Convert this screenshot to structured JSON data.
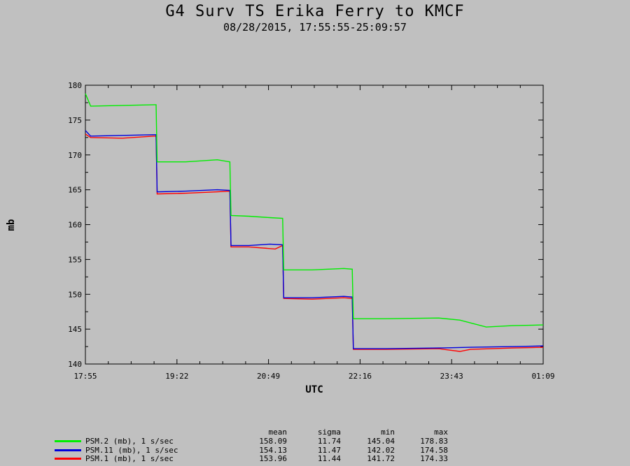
{
  "chart_data": {
    "type": "line",
    "title": "G4 Surv TS Erika Ferry to KMCF",
    "subtitle": "08/28/2015, 17:55:55-25:09:57",
    "xlabel": "UTC",
    "ylabel": "mb",
    "ylim": [
      140,
      180
    ],
    "yticks": [
      "140",
      "145",
      "150",
      "155",
      "160",
      "165",
      "170",
      "175",
      "180"
    ],
    "xlim": [
      "17:55",
      "01:09"
    ],
    "xtick_labels": [
      "17:55",
      "19:22",
      "20:49",
      "22:16",
      "23:43",
      "01:09"
    ],
    "grid": false,
    "series": [
      {
        "name": "PSM.2 (mb), 1 s/sec",
        "color": "#00ee00",
        "x": [
          "17:55",
          "18:00",
          "18:30",
          "19:00",
          "19:02",
          "19:03",
          "19:30",
          "20:00",
          "20:12",
          "20:13",
          "20:30",
          "20:50",
          "21:02",
          "21:03",
          "21:30",
          "22:00",
          "22:08",
          "22:09",
          "22:40",
          "23:30",
          "23:50",
          "00:15",
          "00:40",
          "01:09"
        ],
        "y": [
          178.8,
          177.0,
          177.1,
          177.2,
          177.2,
          169.0,
          169.0,
          169.3,
          169.0,
          161.3,
          161.2,
          161.0,
          160.9,
          153.5,
          153.5,
          153.7,
          153.6,
          146.5,
          146.5,
          146.6,
          146.3,
          145.3,
          145.5,
          145.6
        ]
      },
      {
        "name": "PSM.11 (mb), 1 s/sec",
        "color": "#0000dd",
        "x": [
          "17:55",
          "18:00",
          "18:30",
          "19:00",
          "19:02",
          "19:03",
          "19:30",
          "20:00",
          "20:12",
          "20:13",
          "20:30",
          "20:50",
          "21:02",
          "21:03",
          "21:30",
          "22:00",
          "22:08",
          "22:09",
          "22:40",
          "23:30",
          "00:00",
          "00:40",
          "01:09"
        ],
        "y": [
          173.5,
          172.7,
          172.8,
          172.9,
          172.9,
          164.7,
          164.8,
          165.0,
          164.9,
          157.0,
          157.0,
          157.2,
          157.1,
          149.5,
          149.5,
          149.7,
          149.6,
          142.2,
          142.2,
          142.3,
          142.4,
          142.5,
          142.6
        ]
      },
      {
        "name": "PSM.1 (mb), 1 s/sec",
        "color": "#ff0000",
        "x": [
          "17:55",
          "18:00",
          "18:30",
          "19:00",
          "19:02",
          "19:03",
          "19:30",
          "20:00",
          "20:12",
          "20:13",
          "20:30",
          "20:55",
          "21:02",
          "21:03",
          "21:30",
          "22:00",
          "22:08",
          "22:09",
          "22:40",
          "23:30",
          "23:50",
          "00:00",
          "00:40",
          "01:09"
        ],
        "y": [
          173.0,
          172.5,
          172.4,
          172.7,
          172.7,
          164.4,
          164.5,
          164.7,
          164.8,
          156.8,
          156.8,
          156.5,
          157.0,
          149.4,
          149.3,
          149.5,
          149.4,
          142.1,
          142.1,
          142.2,
          141.8,
          142.1,
          142.3,
          142.4
        ]
      }
    ]
  },
  "stats": {
    "headers": {
      "mean": "mean",
      "sigma": "sigma",
      "min": "min",
      "max": "max"
    },
    "rows": [
      {
        "name": "PSM.2 (mb), 1 s/sec",
        "color": "#00ee00",
        "mean": "158.09",
        "sigma": "11.74",
        "min": "145.04",
        "max": "178.83"
      },
      {
        "name": "PSM.11 (mb), 1 s/sec",
        "color": "#0000dd",
        "mean": "154.13",
        "sigma": "11.47",
        "min": "142.02",
        "max": "174.58"
      },
      {
        "name": "PSM.1 (mb), 1 s/sec",
        "color": "#ff0000",
        "mean": "153.96",
        "sigma": "11.44",
        "min": "141.72",
        "max": "174.33"
      }
    ]
  }
}
